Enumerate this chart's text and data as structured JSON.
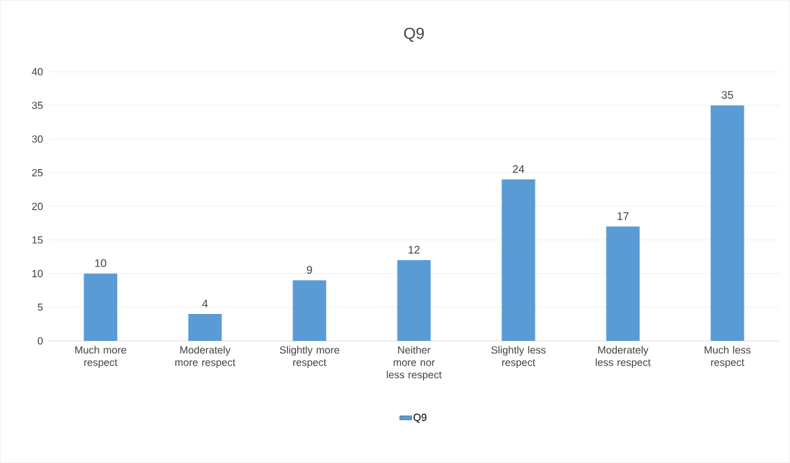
{
  "chart_data": {
    "type": "bar",
    "title": "Q9",
    "categories": [
      "Much more respect",
      "Moderately more respect",
      "Slightly more respect",
      "Neither more nor less respect",
      "Slightly less respect",
      "Moderately less respect",
      "Much less respect"
    ],
    "series": [
      {
        "name": "Q9",
        "color": "#5b9bd5",
        "values": [
          10,
          4,
          9,
          12,
          24,
          17,
          35
        ]
      }
    ],
    "ylim": [
      0,
      40
    ],
    "yticks": [
      0,
      5,
      10,
      15,
      20,
      25,
      30,
      35,
      40
    ],
    "grid": "y",
    "legend": "bottom",
    "data_labels": true
  }
}
